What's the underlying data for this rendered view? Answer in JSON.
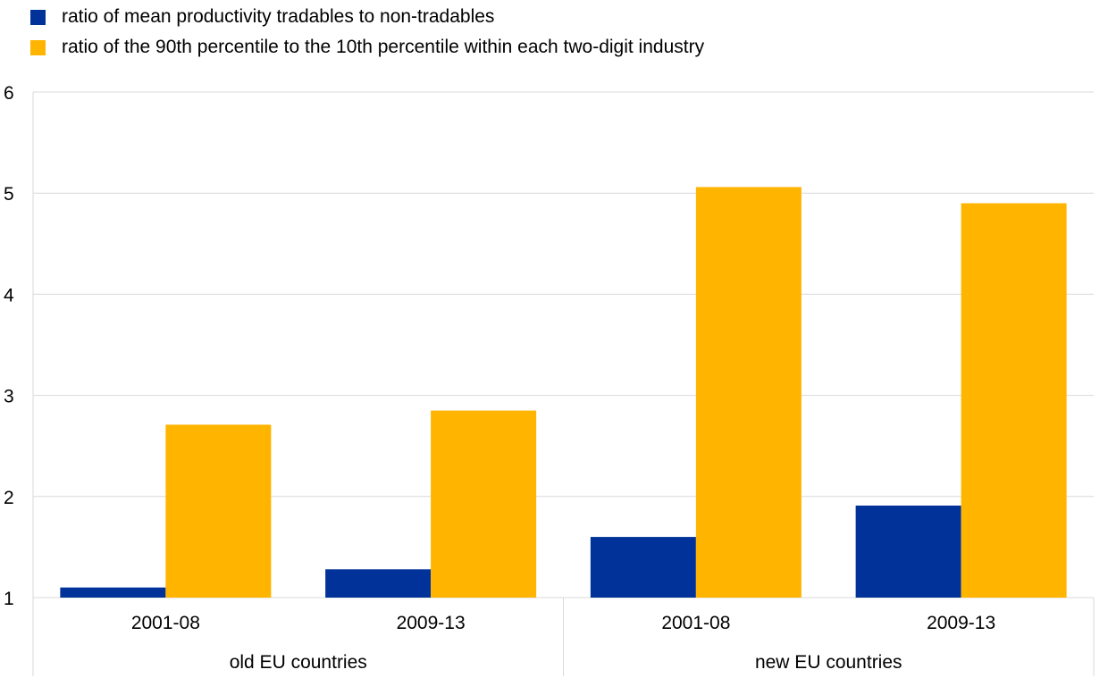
{
  "chart_data": {
    "type": "bar",
    "categories": [
      {
        "label": "2001-08",
        "group": "old EU countries"
      },
      {
        "label": "2009-13",
        "group": "old EU countries"
      },
      {
        "label": "2001-08",
        "group": "new EU countries"
      },
      {
        "label": "2009-13",
        "group": "new EU countries"
      }
    ],
    "groups": [
      "old EU countries",
      "new EU countries"
    ],
    "series": [
      {
        "name": "ratio of mean productivity tradables to non-tradables",
        "color": "#003299",
        "values": [
          1.1,
          1.28,
          1.6,
          1.91
        ]
      },
      {
        "name": "ratio of the 90th percentile to the 10th percentile within each two-digit industry",
        "color": "#FFB400",
        "values": [
          2.71,
          2.85,
          5.06,
          4.9
        ]
      }
    ],
    "ylim": [
      1,
      6
    ],
    "yticks": [
      "1",
      "2",
      "3",
      "4",
      "5",
      "6"
    ],
    "grid": true,
    "legend_position": "top-left"
  }
}
